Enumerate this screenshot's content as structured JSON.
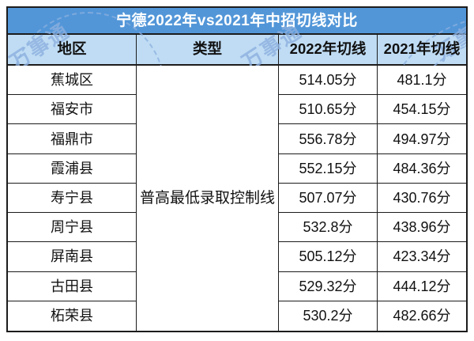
{
  "title": "宁德2022年vs2021年中招切线对比",
  "watermark_text": "万事通",
  "colors": {
    "title_bg": "#5296D8",
    "title_text": "#FFFFFF",
    "header_bg": "#BFDCF4",
    "border": "#1C1C1C",
    "body_text": "#111111",
    "watermark": "#8CB0DF"
  },
  "chart_data": {
    "type": "table",
    "title": "宁德2022年vs2021年中招切线对比",
    "columns": [
      "地区",
      "类型",
      "2022年切线",
      "2021年切线"
    ],
    "merged_type_cell": "普高最低录取控制线",
    "rows": [
      {
        "region": "蕉城区",
        "cut_2022": "514.05分",
        "cut_2021": "481.1分"
      },
      {
        "region": "福安市",
        "cut_2022": "510.65分",
        "cut_2021": "454.15分"
      },
      {
        "region": "福鼎市",
        "cut_2022": "556.78分",
        "cut_2021": "494.97分"
      },
      {
        "region": "霞浦县",
        "cut_2022": "552.15分",
        "cut_2021": "484.36分"
      },
      {
        "region": "寿宁县",
        "cut_2022": "507.07分",
        "cut_2021": "430.76分"
      },
      {
        "region": "周宁县",
        "cut_2022": "532.8分",
        "cut_2021": "438.96分"
      },
      {
        "region": "屏南县",
        "cut_2022": "505.12分",
        "cut_2021": "423.34分"
      },
      {
        "region": "古田县",
        "cut_2022": "529.32分",
        "cut_2021": "444.12分"
      },
      {
        "region": "柘荣县",
        "cut_2022": "530.2分",
        "cut_2021": "482.66分"
      }
    ]
  }
}
